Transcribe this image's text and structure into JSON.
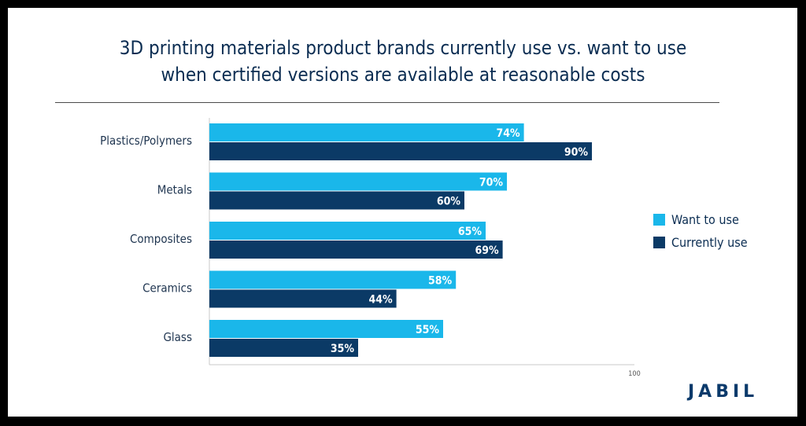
{
  "chart_data": {
    "type": "bar",
    "orientation": "horizontal",
    "title": "3D printing materials product brands currently use vs. want to use when certified versions are available at reasonable costs",
    "title_lines": [
      "3D printing materials product brands currently use vs. want to use",
      "when certified versions are available at reasonable costs"
    ],
    "categories": [
      "Plastics/Polymers",
      "Metals",
      "Composites",
      "Ceramics",
      "Glass"
    ],
    "series": [
      {
        "name": "Want to use",
        "values": [
          74,
          70,
          65,
          58,
          55
        ],
        "color": "#1ab7ea"
      },
      {
        "name": "Currently use",
        "values": [
          90,
          60,
          69,
          44,
          35
        ],
        "color": "#0b3a66"
      }
    ],
    "data_labels_suffix": "%",
    "xlim": [
      0,
      100
    ],
    "x_tick_labels": [
      "100"
    ],
    "legend_position": "right",
    "grid": false
  },
  "branding": {
    "logo_text": "JABIL",
    "logo_color": "#0b3a6b"
  }
}
